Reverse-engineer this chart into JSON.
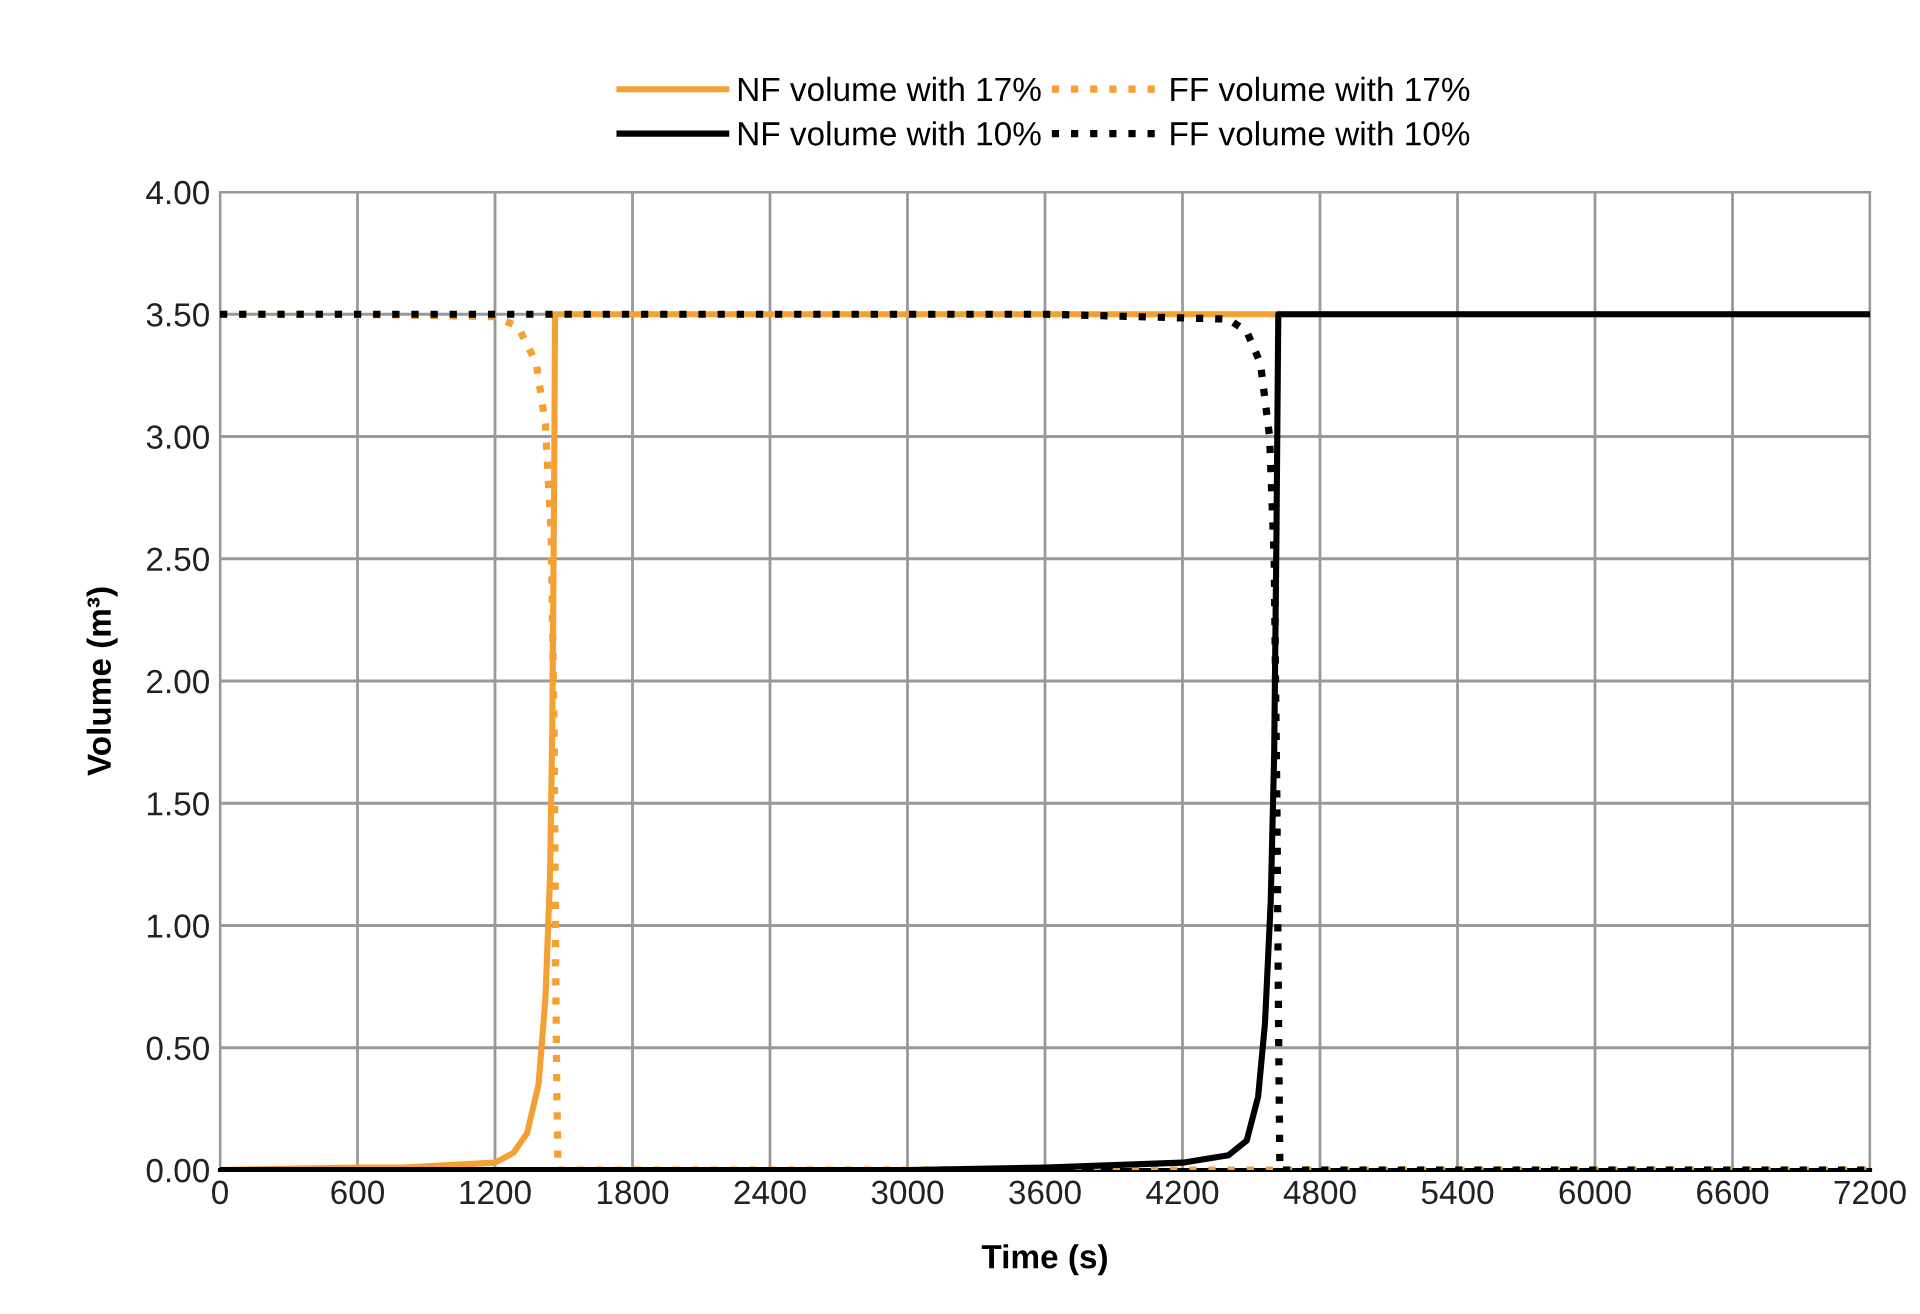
{
  "chart_data": {
    "type": "line",
    "xlabel": "Time (s)",
    "ylabel": "Volume (m³)",
    "xlim": [
      0,
      7200
    ],
    "xticks": [
      0,
      600,
      1200,
      1800,
      2400,
      3000,
      3600,
      4200,
      4800,
      5400,
      6000,
      6600,
      7200
    ],
    "ylim": [
      0,
      4
    ],
    "yticks": [
      {
        "value": 0,
        "label": "0.00"
      },
      {
        "value": 0.5,
        "label": "0.50"
      },
      {
        "value": 1,
        "label": "1.00"
      },
      {
        "value": 1.5,
        "label": "1.50"
      },
      {
        "value": 2,
        "label": "2.00"
      },
      {
        "value": 2.5,
        "label": "2.50"
      },
      {
        "value": 3,
        "label": "3.00"
      },
      {
        "value": 3.5,
        "label": "3.50"
      },
      {
        "value": 4,
        "label": "4.00"
      }
    ],
    "grid": true,
    "legend": "top",
    "marker": "none",
    "series": [
      {
        "name": "NF volume with 17%",
        "color": "#f5a033",
        "line_style": "solid",
        "x": [
          0,
          600,
          800,
          1000,
          1200,
          1280,
          1340,
          1390,
          1420,
          1440,
          1450,
          1458,
          1462,
          2400,
          4800,
          7200
        ],
        "values": [
          0,
          0.01,
          0.01,
          0.02,
          0.03,
          0.07,
          0.15,
          0.35,
          0.7,
          1.2,
          1.8,
          2.8,
          3.5,
          3.5,
          3.5,
          3.5
        ]
      },
      {
        "name": "FF volume with 17%",
        "color": "#f5a033",
        "line_style": "dotted",
        "x": [
          0,
          600,
          1200,
          1300,
          1380,
          1420,
          1445,
          1458,
          1465,
          1470,
          1475,
          2400,
          4800,
          7200
        ],
        "values": [
          3.5,
          3.5,
          3.49,
          3.45,
          3.3,
          3.05,
          2.6,
          1.8,
          0.8,
          0.3,
          0,
          0,
          0,
          0
        ]
      },
      {
        "name": "NF volume with 10%",
        "color": "#000000",
        "line_style": "solid",
        "x": [
          0,
          1800,
          3000,
          3600,
          4200,
          4400,
          4480,
          4530,
          4560,
          4585,
          4600,
          4610,
          4618,
          4622,
          6000,
          7200
        ],
        "values": [
          0,
          0,
          0,
          0.01,
          0.03,
          0.06,
          0.12,
          0.3,
          0.6,
          1.1,
          1.7,
          2.6,
          3.5,
          3.5,
          3.5,
          3.5
        ]
      },
      {
        "name": "FF volume with 10%",
        "color": "#000000",
        "line_style": "dotted",
        "x": [
          0,
          1200,
          2400,
          3600,
          4400,
          4480,
          4540,
          4580,
          4600,
          4612,
          4620,
          4625,
          6000,
          7200
        ],
        "values": [
          3.5,
          3.5,
          3.5,
          3.5,
          3.48,
          3.43,
          3.3,
          3.0,
          2.5,
          1.5,
          0.5,
          0,
          0,
          0
        ]
      }
    ]
  }
}
